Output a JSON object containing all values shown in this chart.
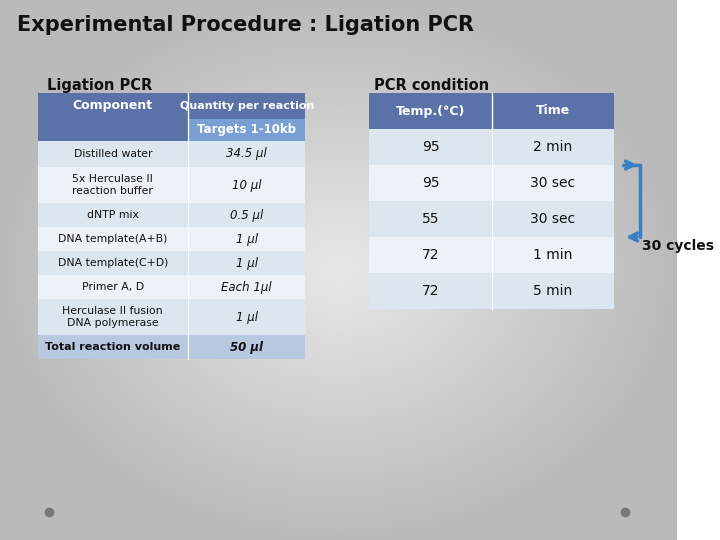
{
  "title": "Experimental Procedure : Ligation PCR",
  "left_subtitle": "Ligation PCR",
  "right_subtitle": "PCR condition",
  "bg_color_center": "#e8e8e8",
  "bg_color_edge": "#b0b8c4",
  "header_color": "#5a72a8",
  "subheader_color": "#7a9fd4",
  "row_colors": [
    "#dce6f1",
    "#edf2f9"
  ],
  "total_row_color": "#b8c8e0",
  "text_dark": "#111111",
  "text_white": "#ffffff",
  "arrow_color": "#3a7fc1",
  "left_table": {
    "col1_header": "Component",
    "col2_header": "Quantity per reaction",
    "col2_subheader": "Targets 1-10kb",
    "rows": [
      [
        "Distilled water",
        "34.5 μl"
      ],
      [
        "5x Herculase II\nreaction buffer",
        "10 μl"
      ],
      [
        "dNTP mix",
        "0.5 μl"
      ],
      [
        "DNA template(A+B)",
        "1 μl"
      ],
      [
        "DNA template(C+D)",
        "1 μl"
      ],
      [
        "Primer A, D",
        "Each 1μl"
      ],
      [
        "Herculase II fusion\nDNA polymerase",
        "1 μl"
      ]
    ],
    "total_row": [
      "Total reaction volume",
      "50 μl"
    ]
  },
  "right_table": {
    "col1_header": "Temp.(°C)",
    "col2_header": "Time",
    "rows": [
      [
        "95",
        "2 min"
      ],
      [
        "95",
        "30 sec"
      ],
      [
        "55",
        "30 sec"
      ],
      [
        "72",
        "1 min"
      ],
      [
        "72",
        "5 min"
      ]
    ]
  },
  "cycles_label": "30 cycles",
  "dot_color": "#777777"
}
